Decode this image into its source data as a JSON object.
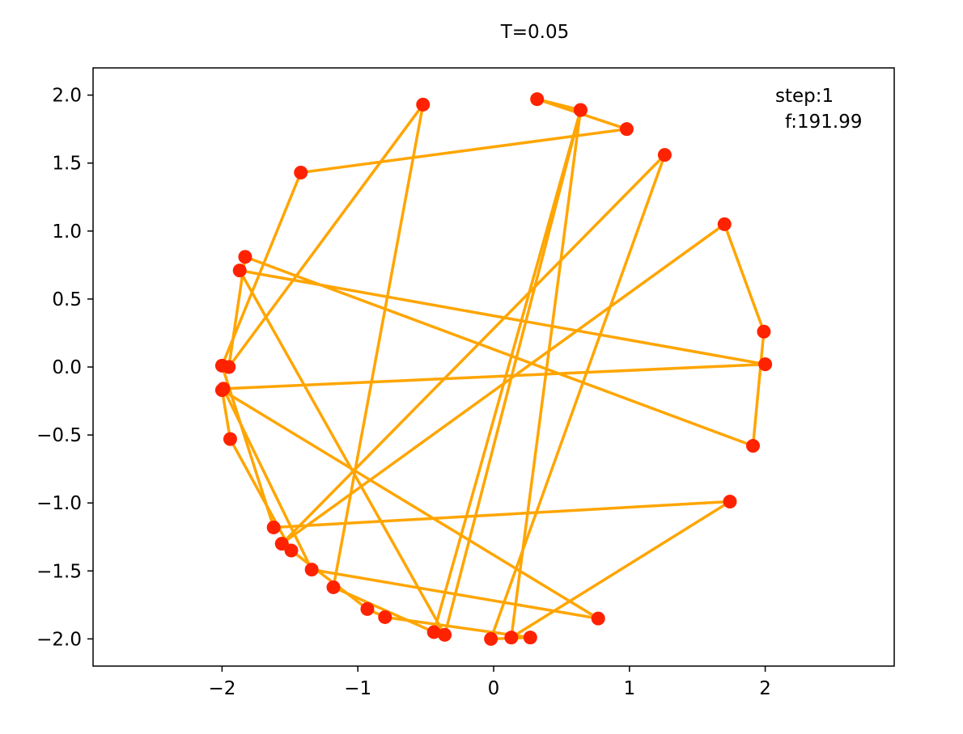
{
  "chart_data": {
    "type": "line",
    "title": "T=0.05",
    "xlabel": "",
    "ylabel": "",
    "xlim": [
      -2.95,
      2.95
    ],
    "ylim": [
      -2.2,
      2.2
    ],
    "grid": false,
    "xticks": [
      -2,
      -1,
      0,
      1,
      2
    ],
    "yticks": [
      2.0,
      1.5,
      1.0,
      0.5,
      0.0,
      -0.5,
      -1.0,
      -1.5,
      -2.0
    ],
    "xtick_labels": [
      "−2",
      "−1",
      "0",
      "1",
      "2"
    ],
    "ytick_labels": [
      "2.0",
      "1.5",
      "1.0",
      "0.5",
      "0.0",
      "−0.5",
      "−1.0",
      "−1.5",
      "−2.0"
    ],
    "annotation": {
      "step": "step:1",
      "f": "f:191.99"
    },
    "line_color": "#ffa500",
    "marker_color": "#ff2200",
    "series": [
      {
        "x": [
          -0.52,
          -1.18,
          -0.44,
          0.64,
          0.13,
          1.74,
          -1.62,
          -2.0,
          -1.42,
          0.98,
          0.32,
          0.64,
          -0.36,
          -1.87,
          2.0,
          -1.99,
          -1.34,
          0.77,
          -2.0,
          -1.94,
          -1.49,
          -0.93,
          -0.8,
          0.27,
          -0.02,
          1.26,
          -1.56,
          1.7,
          1.99,
          1.91,
          -1.83,
          -1.95
        ],
        "y": [
          1.93,
          -1.62,
          -1.95,
          1.89,
          -1.99,
          -0.99,
          -1.18,
          0.01,
          1.43,
          1.75,
          1.97,
          1.89,
          -1.97,
          0.71,
          0.02,
          -0.16,
          -1.49,
          -1.85,
          -0.17,
          -0.53,
          -1.35,
          -1.78,
          -1.84,
          -1.99,
          -2.0,
          1.56,
          -1.3,
          1.05,
          0.26,
          -0.58,
          0.81,
          0.0
        ]
      }
    ]
  }
}
